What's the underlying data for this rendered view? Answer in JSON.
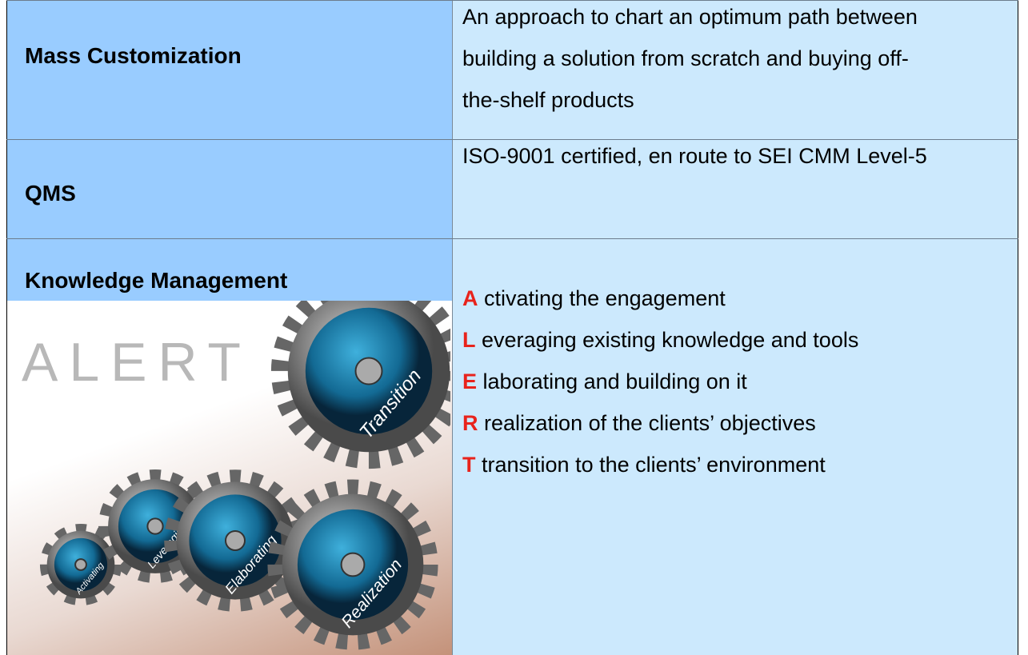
{
  "table": {
    "rows": [
      {
        "term": "Mass Customization",
        "description": [
          "An approach to chart an optimum path between",
          "building a solution from scratch and buying off-",
          "the-shelf products"
        ]
      },
      {
        "term": "QMS",
        "description": [
          "ISO-9001 certified, en route to SEI CMM Level-5"
        ]
      },
      {
        "term": "Knowledge Management",
        "items": [
          {
            "letter": "A",
            "text": "ctivating the engagement"
          },
          {
            "letter": "L",
            "text": "everaging existing knowledge and tools"
          },
          {
            "letter": "E",
            "text": "laborating and building on it"
          },
          {
            "letter": "R",
            "text": "realization of the clients’ objectives"
          },
          {
            "letter": "T",
            "text": "transition to the clients’ environment"
          }
        ]
      }
    ]
  },
  "image": {
    "title": "ALERT",
    "gears": [
      "Activating",
      "Leveraging",
      "Elaborating",
      "Transition",
      "Realization"
    ]
  }
}
